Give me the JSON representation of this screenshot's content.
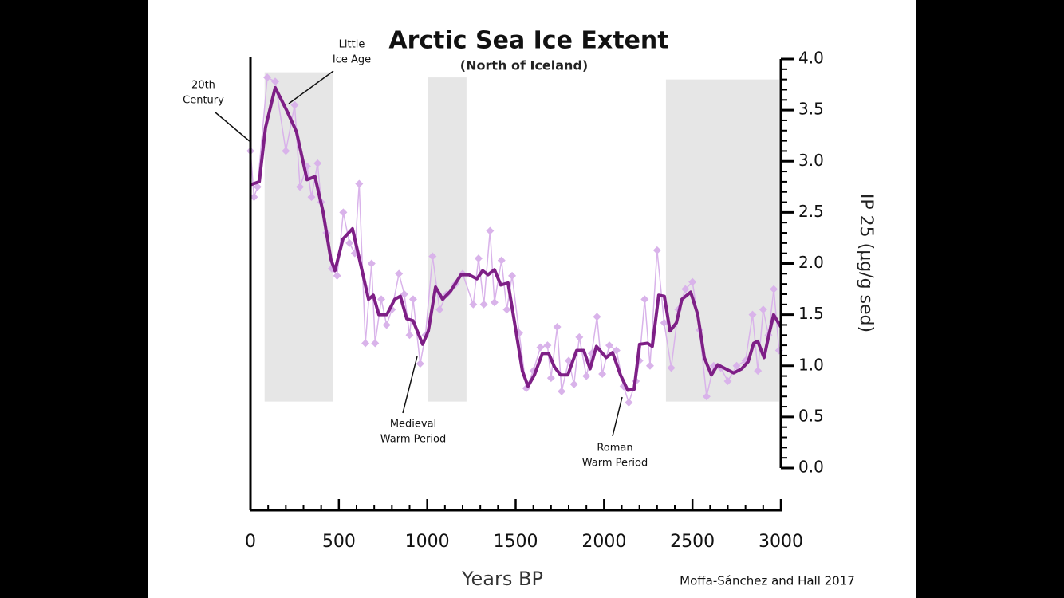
{
  "chart_data": {
    "type": "line",
    "title": "Arctic Sea Ice Extent",
    "subtitle": "(North of Iceland)",
    "x_label": "Years BP",
    "y_label": "IP 25 (µg/g sed)",
    "source": "Moffa-Sánchez and Hall 2017",
    "xlim": [
      0,
      3000
    ],
    "xticks": [
      0,
      500,
      1000,
      1500,
      2000,
      2500,
      3000
    ],
    "ylim": [
      0,
      4
    ],
    "yticks": [
      {
        "value": 0,
        "label": "0.0"
      },
      {
        "value": 0.5,
        "label": "0.5"
      },
      {
        "value": 1,
        "label": "1.0"
      },
      {
        "value": 1.5,
        "label": "1.5"
      },
      {
        "value": 2,
        "label": "2.0"
      },
      {
        "value": 2.5,
        "label": "2.5"
      },
      {
        "value": 3,
        "label": "3.0"
      },
      {
        "value": 3.5,
        "label": "3.5"
      },
      {
        "value": 4,
        "label": "4.0"
      }
    ],
    "shaded_regions": [
      {
        "x": [
          80,
          465
        ],
        "y": [
          0.65,
          3.87
        ]
      },
      {
        "x": [
          1006,
          1222
        ],
        "y": [
          0.65,
          3.82
        ]
      },
      {
        "x": [
          2350,
          2990
        ],
        "y": [
          0.65,
          3.8
        ]
      }
    ],
    "annotations": [
      {
        "lines": [
          "20th",
          "Century"
        ]
      },
      {
        "lines": [
          "Little",
          "Ice Age"
        ]
      },
      {
        "lines": [
          "Medieval",
          "Warm Period"
        ]
      },
      {
        "lines": [
          "Roman",
          "Warm Period"
        ]
      }
    ],
    "series": [
      {
        "color": "#7e1f86",
        "x": [
          0,
          50,
          85,
          140,
          207,
          260,
          320,
          365,
          410,
          455,
          478,
          523,
          577,
          622,
          668,
          695,
          726,
          771,
          816,
          848,
          884,
          920,
          974,
          1006,
          1047,
          1087,
          1132,
          1191,
          1236,
          1281,
          1313,
          1344,
          1380,
          1416,
          1457,
          1498,
          1538,
          1570,
          1606,
          1651,
          1687,
          1719,
          1754,
          1795,
          1845,
          1885,
          1921,
          1957,
          2012,
          2048,
          2093,
          2134,
          2170,
          2201,
          2246,
          2273,
          2309,
          2341,
          2373,
          2409,
          2440,
          2490,
          2530,
          2567,
          2607,
          2643,
          2688,
          2733,
          2778,
          2815,
          2846,
          2869,
          2905,
          2932,
          2959,
          3000
        ],
        "values": [
          2.77,
          2.8,
          3.33,
          3.72,
          3.49,
          3.29,
          2.82,
          2.85,
          2.51,
          2.04,
          1.93,
          2.24,
          2.34,
          2.0,
          1.65,
          1.69,
          1.5,
          1.5,
          1.65,
          1.68,
          1.46,
          1.44,
          1.21,
          1.34,
          1.77,
          1.65,
          1.73,
          1.89,
          1.89,
          1.85,
          1.93,
          1.89,
          1.94,
          1.79,
          1.81,
          1.38,
          0.95,
          0.8,
          0.91,
          1.12,
          1.12,
          0.99,
          0.91,
          0.91,
          1.15,
          1.15,
          0.97,
          1.19,
          1.08,
          1.13,
          0.91,
          0.76,
          0.77,
          1.21,
          1.22,
          1.19,
          1.69,
          1.68,
          1.34,
          1.42,
          1.65,
          1.72,
          1.5,
          1.08,
          0.91,
          1.01,
          0.97,
          0.93,
          0.97,
          1.04,
          1.22,
          1.24,
          1.08,
          1.3,
          1.5,
          1.38
        ]
      },
      {
        "color": "#d9b3ea",
        "x": [
          0,
          20,
          40,
          95,
          140,
          200,
          250,
          280,
          320,
          345,
          380,
          400,
          430,
          460,
          490,
          525,
          560,
          590,
          615,
          650,
          685,
          705,
          740,
          770,
          800,
          840,
          870,
          900,
          920,
          960,
          990,
          1030,
          1070,
          1110,
          1160,
          1200,
          1260,
          1290,
          1320,
          1355,
          1380,
          1420,
          1450,
          1480,
          1520,
          1560,
          1600,
          1640,
          1680,
          1700,
          1735,
          1760,
          1800,
          1830,
          1860,
          1900,
          1930,
          1960,
          1990,
          2030,
          2070,
          2110,
          2140,
          2180,
          2200,
          2230,
          2260,
          2300,
          2340,
          2380,
          2420,
          2460,
          2500,
          2540,
          2580,
          2620,
          2660,
          2700,
          2750,
          2800,
          2840,
          2870,
          2900,
          2930,
          2960,
          2990
        ],
        "values": [
          3.1,
          2.65,
          2.75,
          3.82,
          3.78,
          3.1,
          3.55,
          2.75,
          2.95,
          2.65,
          2.98,
          2.6,
          2.3,
          1.95,
          1.88,
          2.5,
          2.2,
          2.1,
          2.78,
          1.22,
          2.0,
          1.22,
          1.65,
          1.4,
          1.55,
          1.9,
          1.7,
          1.3,
          1.65,
          1.02,
          1.3,
          2.07,
          1.55,
          1.7,
          1.8,
          1.9,
          1.6,
          2.05,
          1.6,
          2.32,
          1.62,
          2.03,
          1.55,
          1.88,
          1.32,
          0.78,
          0.95,
          1.18,
          1.2,
          0.88,
          1.38,
          0.75,
          1.05,
          0.82,
          1.28,
          0.9,
          1.12,
          1.48,
          0.92,
          1.2,
          1.15,
          0.8,
          0.64,
          0.85,
          1.05,
          1.65,
          1.0,
          2.13,
          1.42,
          0.98,
          1.55,
          1.75,
          1.82,
          1.35,
          0.7,
          1.0,
          0.98,
          0.85,
          1.0,
          1.05,
          1.5,
          0.95,
          1.55,
          1.3,
          1.75,
          1.15
        ]
      }
    ]
  }
}
